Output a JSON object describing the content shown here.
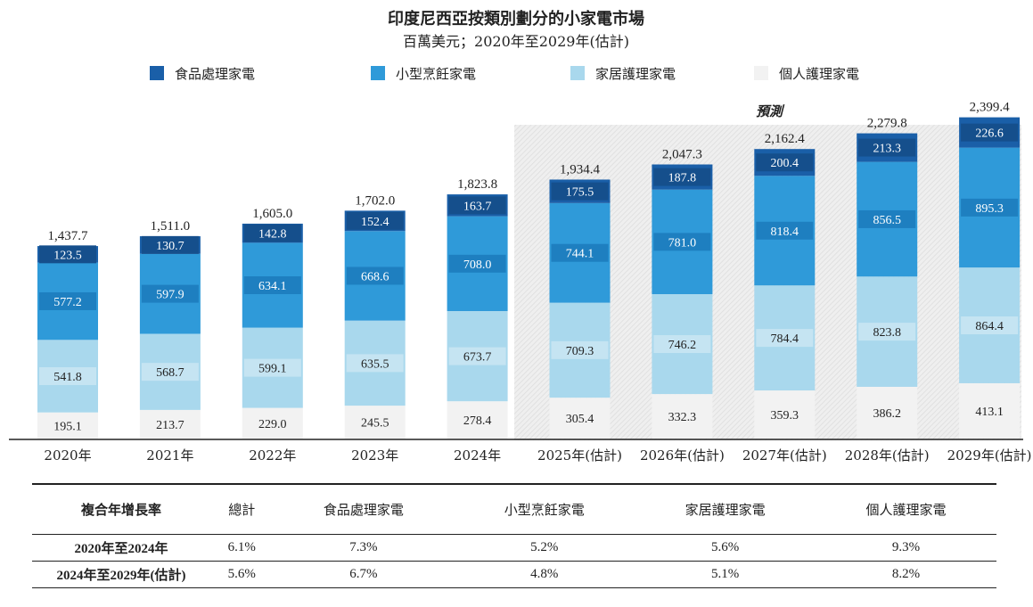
{
  "title": "印度尼西亞按類別劃分的小家電市場",
  "subtitle": "百萬美元；2020年至2029年(估計)",
  "forecast_label": "預測",
  "colors": {
    "food": "#1a5fa8",
    "kitchen": "#2f9ad9",
    "home": "#a9d8ed",
    "personal": "#f2f2f2",
    "forecast_bg": "#ececec"
  },
  "chart_data": {
    "type": "bar",
    "stacked": true,
    "categories": [
      "2020年",
      "2021年",
      "2022年",
      "2023年",
      "2024年",
      "2025年(估計)",
      "2026年(估計)",
      "2027年(估計)",
      "2028年(估計)",
      "2029年(估計)"
    ],
    "forecast_start_index": 5,
    "series": [
      {
        "name": "個人護理家電",
        "key": "personal",
        "values": [
          195.1,
          213.7,
          229.0,
          245.5,
          278.4,
          305.4,
          332.3,
          359.3,
          386.2,
          413.1
        ]
      },
      {
        "name": "家居護理家電",
        "key": "home",
        "values": [
          541.8,
          568.7,
          599.1,
          635.5,
          673.7,
          709.3,
          746.2,
          784.4,
          823.8,
          864.4
        ]
      },
      {
        "name": "小型烹飪家電",
        "key": "kitchen",
        "values": [
          577.2,
          597.9,
          634.1,
          668.6,
          708.0,
          744.1,
          781.0,
          818.4,
          856.5,
          895.3
        ]
      },
      {
        "name": "食品處理家電",
        "key": "food",
        "values": [
          123.5,
          130.7,
          142.8,
          152.4,
          163.7,
          175.5,
          187.8,
          200.4,
          213.3,
          226.6
        ]
      }
    ],
    "value_labels": {
      "personal": [
        "195.1",
        "213.7",
        "229.0",
        "245.5",
        "278.4",
        "305.4",
        "332.3",
        "359.3",
        "386.2",
        "413.1"
      ],
      "home": [
        "541.8",
        "568.7",
        "599.1",
        "635.5",
        "673.7",
        "709.3",
        "746.2",
        "784.4",
        "823.8",
        "864.4"
      ],
      "kitchen": [
        "577.2",
        "597.9",
        "634.1",
        "668.6",
        "708.0",
        "744.1",
        "781.0",
        "818.4",
        "856.5",
        "895.3"
      ],
      "food": [
        "123.5",
        "130.7",
        "142.8",
        "152.4",
        "163.7",
        "175.5",
        "187.8",
        "200.4",
        "213.3",
        "226.6"
      ]
    },
    "totals": [
      1437.7,
      1511.0,
      1605.0,
      1702.0,
      1823.8,
      1934.4,
      2047.3,
      2162.4,
      2279.8,
      2399.4
    ],
    "total_labels": [
      "1,437.7",
      "1,511.0",
      "1,605.0",
      "1,702.0",
      "1,823.8",
      "1,934.4",
      "2,047.3",
      "2,162.4",
      "2,279.8",
      "2,399.4"
    ],
    "legend": [
      {
        "key": "food",
        "label": "食品處理家電"
      },
      {
        "key": "kitchen",
        "label": "小型烹飪家電"
      },
      {
        "key": "home",
        "label": "家居護理家電"
      },
      {
        "key": "personal",
        "label": "個人護理家電"
      }
    ],
    "legend_position": "top",
    "ylim": [
      0,
      2600
    ]
  },
  "cagr_table": {
    "headers": [
      "複合年增長率",
      "總計",
      "食品處理家電",
      "小型烹飪家電",
      "家居護理家電",
      "個人護理家電"
    ],
    "rows": [
      {
        "period": "2020年至2024年",
        "values": [
          "6.1%",
          "7.3%",
          "5.2%",
          "5.6%",
          "9.3%"
        ]
      },
      {
        "period": "2024年至2029年(估計)",
        "values": [
          "5.6%",
          "6.7%",
          "4.8%",
          "5.1%",
          "8.2%"
        ]
      }
    ]
  }
}
